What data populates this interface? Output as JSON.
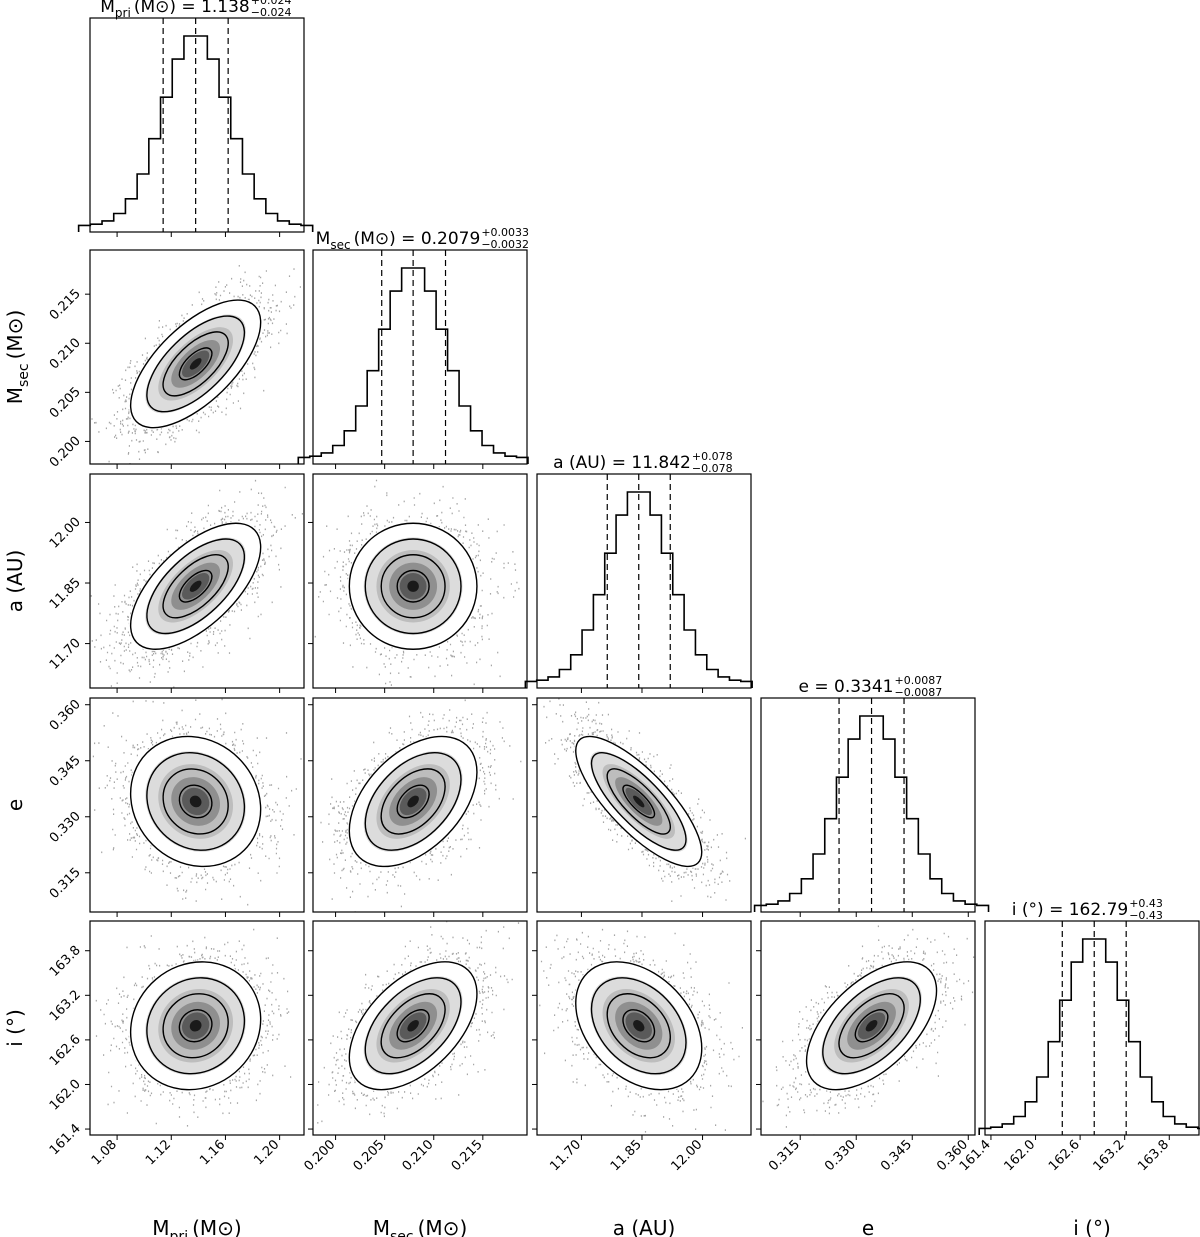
{
  "chart_data": {
    "type": "corner",
    "parameters": [
      {
        "key": "mpri",
        "label_main": "M",
        "label_sub": "pri",
        "label_unit": "(M⊙)",
        "range": [
          1.06,
          1.218
        ],
        "ticks": [
          1.08,
          1.12,
          1.16,
          1.2
        ],
        "tick_labels": [
          "1.08",
          "1.12",
          "1.16",
          "1.20"
        ],
        "median": 1.138,
        "plus": 0.024,
        "minus": 0.024,
        "title_value": "1.138",
        "title_sup": "+0.024",
        "title_sub": "−0.024"
      },
      {
        "key": "msec",
        "label_main": "M",
        "label_sub": "sec",
        "label_unit": "(M⊙)",
        "range": [
          0.1977,
          0.2195
        ],
        "ticks": [
          0.2,
          0.205,
          0.21,
          0.215
        ],
        "tick_labels": [
          "0.200",
          "0.205",
          "0.210",
          "0.215"
        ],
        "median": 0.2079,
        "plus": 0.0033,
        "minus": 0.0032,
        "title_value": "0.2079",
        "title_sup": "+0.0033",
        "title_sub": "−0.0032"
      },
      {
        "key": "a",
        "label_main": "a (AU)",
        "label_sub": "",
        "label_unit": "",
        "range": [
          11.59,
          12.12
        ],
        "ticks": [
          11.7,
          11.85,
          12.0
        ],
        "tick_labels": [
          "11.70",
          "11.85",
          "12.00"
        ],
        "median": 11.842,
        "plus": 0.078,
        "minus": 0.078,
        "title_value": "11.842",
        "title_sup": "+0.078",
        "title_sub": "−0.078"
      },
      {
        "key": "e",
        "label_main": "e",
        "label_sub": "",
        "label_unit": "",
        "range": [
          0.3045,
          0.3618
        ],
        "ticks": [
          0.315,
          0.33,
          0.345,
          0.36
        ],
        "tick_labels": [
          "0.315",
          "0.330",
          "0.345",
          "0.360"
        ],
        "median": 0.3341,
        "plus": 0.0087,
        "minus": 0.0087,
        "title_value": "0.3341",
        "title_sup": "+0.0087",
        "title_sub": "−0.0087"
      },
      {
        "key": "i",
        "label_main": "i (°)",
        "label_sub": "",
        "label_unit": "",
        "range": [
          161.32,
          164.2
        ],
        "ticks": [
          161.4,
          162.0,
          162.6,
          163.2,
          163.8
        ],
        "tick_labels": [
          "161.4",
          "162.0",
          "162.6",
          "163.2",
          "163.8"
        ],
        "median": 162.79,
        "plus": 0.43,
        "minus": 0.43,
        "title_value": "162.79",
        "title_sup": "+0.43",
        "title_sub": "−0.43"
      }
    ],
    "correlations": {
      "1-0": 0.65,
      "2-0": 0.62,
      "2-1": 0.0,
      "3-0": -0.12,
      "3-1": 0.45,
      "3-2": -0.78,
      "4-0": 0.1,
      "4-1": 0.5,
      "4-2": -0.35,
      "4-3": 0.55
    },
    "grid": false
  }
}
